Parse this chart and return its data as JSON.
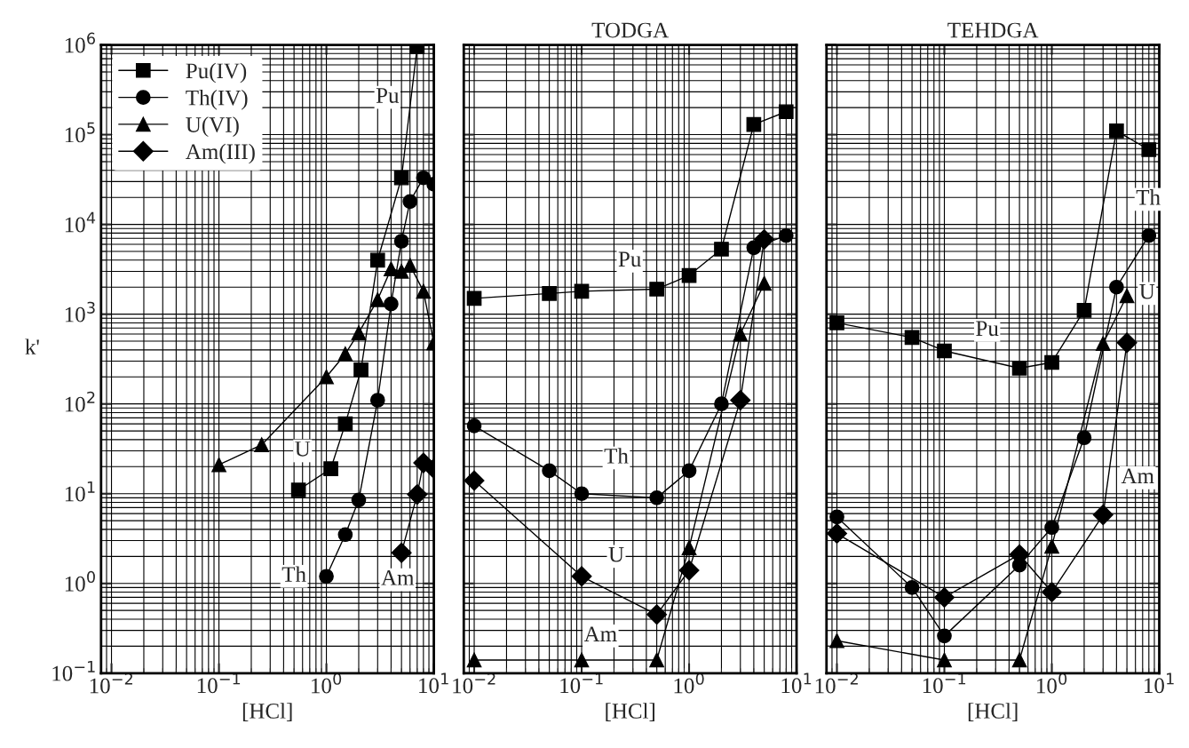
{
  "chart_data": [
    {
      "type": "line",
      "xlabel": "[HCl]",
      "ylabel": "k'",
      "log": "xy",
      "grid": true,
      "legend": "top left",
      "line_style": "solid",
      "xlim": [
        0.008,
        10
      ],
      "ylim": [
        0.1,
        1000000
      ],
      "xticks": [
        {
          "value": 0.01,
          "label": "10$^{−2}$"
        },
        {
          "value": 0.1,
          "label": "10$^{−1}$"
        },
        {
          "value": 1,
          "label": "10$^{0}$"
        },
        {
          "value": 10,
          "label": "10$^{1}$"
        }
      ],
      "yticks": [
        {
          "value": 0.1,
          "label": "10$^{−1}$"
        },
        {
          "value": 1,
          "label": "10$^{0}$"
        },
        {
          "value": 10,
          "label": "10$^{1}$"
        },
        {
          "value": 100,
          "label": "10$^{2}$"
        },
        {
          "value": 1000,
          "label": "10$^{3}$"
        },
        {
          "value": 10000,
          "label": "10$^{4}$"
        },
        {
          "value": 100000,
          "label": "10$^{5}$"
        },
        {
          "value": 1000000,
          "label": "10$^{6}$"
        }
      ],
      "series": [
        {
          "name": "Pu(IV)",
          "color": "#000000",
          "marker": "square",
          "x": [
            0.55,
            1.1,
            1.5,
            2.1,
            3,
            5,
            7
          ],
          "values": [
            11,
            19,
            60,
            240,
            4000,
            33000,
            950000
          ]
        },
        {
          "name": "Th(IV)",
          "color": "#000000",
          "marker": "circle",
          "x": [
            1,
            1.5,
            2,
            3,
            4,
            5,
            6,
            8,
            10
          ],
          "values": [
            1.2,
            3.5,
            8.5,
            110,
            1300,
            6500,
            18000,
            33000,
            28000
          ]
        },
        {
          "name": "U(VI)",
          "color": "#000000",
          "marker": "triangle",
          "x": [
            0.1,
            0.25,
            1,
            1.5,
            2,
            3,
            4,
            5,
            6,
            8,
            10
          ],
          "values": [
            21,
            35,
            200,
            360,
            620,
            1450,
            3200,
            3000,
            3500,
            1800,
            480
          ]
        },
        {
          "name": "Am(III)",
          "color": "#000000",
          "marker": "diamond",
          "x": [
            5,
            7,
            8,
            10
          ],
          "values": [
            2.2,
            9.8,
            22,
            19
          ]
        }
      ],
      "annotations": [
        {
          "text": "Pu",
          "x": 3.7,
          "y": 260000
        },
        {
          "text": "U",
          "x": 0.6,
          "y": 30
        },
        {
          "text": "Th",
          "x": 0.5,
          "y": 1.2
        },
        {
          "text": "Am",
          "x": 4.6,
          "y": 1.1
        }
      ]
    },
    {
      "type": "line",
      "title": "TODGA",
      "xlabel": "[HCl]",
      "log": "xy",
      "grid": true,
      "tick_labels": "x",
      "line_style": "solid",
      "xlim": [
        0.008,
        10
      ],
      "ylim": [
        0.1,
        1000000
      ],
      "xticks": [
        {
          "value": 0.01,
          "label": "10$^{−2}$"
        },
        {
          "value": 0.1,
          "label": "10$^{−1}$"
        },
        {
          "value": 1,
          "label": "10$^{0}$"
        },
        {
          "value": 10,
          "label": "10$^{1}$"
        }
      ],
      "yticks": [
        0.1,
        1,
        10,
        100,
        1000,
        10000,
        100000,
        1000000
      ],
      "series": [
        {
          "color": "#000000",
          "marker": "square",
          "x": [
            0.01,
            0.05,
            0.1,
            0.5,
            1,
            2,
            4,
            8
          ],
          "values": [
            1500,
            1700,
            1800,
            1900,
            2700,
            5300,
            130000,
            180000
          ]
        },
        {
          "color": "#000000",
          "marker": "circle",
          "x": [
            0.01,
            0.05,
            0.1,
            0.5,
            1,
            2,
            4,
            8
          ],
          "values": [
            57,
            18,
            10,
            9,
            18,
            100,
            5500,
            7500
          ]
        },
        {
          "color": "#000000",
          "marker": "triangle",
          "x": [
            0.01,
            0.1,
            0.5,
            1,
            3,
            5
          ],
          "values": [
            0.14,
            0.14,
            0.14,
            2.5,
            600,
            2200
          ]
        },
        {
          "color": "#000000",
          "marker": "diamond",
          "x": [
            0.01,
            0.1,
            0.5,
            1,
            3,
            5
          ],
          "values": [
            14,
            1.2,
            0.45,
            1.4,
            110,
            6800
          ]
        }
      ],
      "annotations": [
        {
          "text": "Pu",
          "x": 0.28,
          "y": 3900
        },
        {
          "text": "Th",
          "x": 0.21,
          "y": 25
        },
        {
          "text": "U",
          "x": 0.21,
          "y": 2
        },
        {
          "text": "Am",
          "x": 0.15,
          "y": 0.26
        }
      ]
    },
    {
      "type": "line",
      "title": "TEHDGA",
      "xlabel": "[HCl]",
      "log": "xy",
      "grid": true,
      "tick_labels": "x",
      "line_style": "solid",
      "xlim": [
        0.008,
        10
      ],
      "ylim": [
        0.1,
        1000000
      ],
      "xticks": [
        {
          "value": 0.01,
          "label": "10$^{−2}$"
        },
        {
          "value": 0.1,
          "label": "10$^{−1}$"
        },
        {
          "value": 1,
          "label": "10$^{0}$"
        },
        {
          "value": 10,
          "label": "10$^{1}$"
        }
      ],
      "yticks": [
        0.1,
        1,
        10,
        100,
        1000,
        10000,
        100000,
        1000000
      ],
      "series": [
        {
          "color": "#000000",
          "marker": "square",
          "x": [
            0.01,
            0.05,
            0.1,
            0.5,
            1,
            2,
            4,
            8
          ],
          "values": [
            800,
            550,
            390,
            250,
            290,
            1100,
            110000,
            68000
          ]
        },
        {
          "color": "#000000",
          "marker": "circle",
          "x": [
            0.01,
            0.05,
            0.1,
            0.5,
            1,
            2,
            4,
            8
          ],
          "values": [
            5.5,
            0.9,
            0.26,
            1.6,
            4.2,
            42,
            2000,
            7500
          ]
        },
        {
          "color": "#000000",
          "marker": "triangle",
          "x": [
            0.01,
            0.1,
            0.5,
            1,
            3,
            5
          ],
          "values": [
            0.23,
            0.14,
            0.14,
            2.6,
            470,
            1600
          ]
        },
        {
          "color": "#000000",
          "marker": "diamond",
          "x": [
            0.01,
            0.1,
            0.5,
            1,
            3,
            5
          ],
          "values": [
            3.6,
            0.7,
            2.1,
            0.8,
            5.8,
            480
          ]
        }
      ],
      "annotations": [
        {
          "text": "Th",
          "x": 7.9,
          "y": 19000
        },
        {
          "text": "U",
          "x": 7.7,
          "y": 1700
        },
        {
          "text": "Pu",
          "x": 0.25,
          "y": 660
        },
        {
          "text": "Am",
          "x": 6.3,
          "y": 15
        }
      ]
    }
  ]
}
